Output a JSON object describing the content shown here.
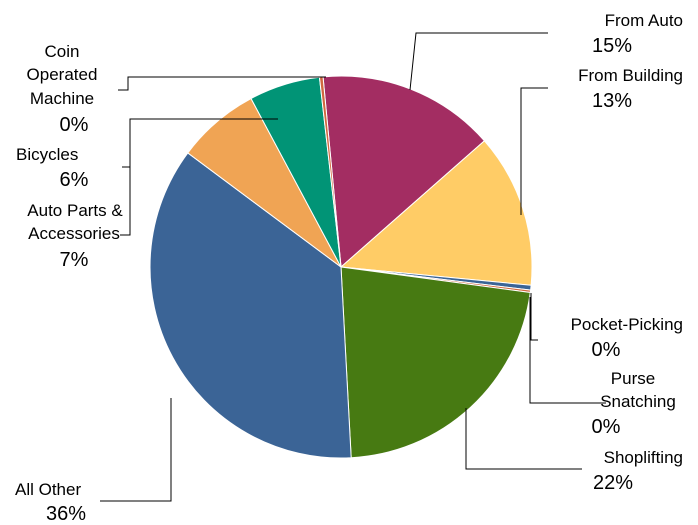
{
  "chart_data": {
    "type": "pie",
    "title": "",
    "slices": [
      {
        "name": "From Auto",
        "value": 15,
        "label": "15%",
        "color": "#A32D62"
      },
      {
        "name": "From Building",
        "value": 13,
        "label": "13%",
        "color": "#FFCC66"
      },
      {
        "name": "Pocket-Picking",
        "value": 0.4,
        "label": "0%",
        "color": "#3B6496"
      },
      {
        "name": "Purse Snatching",
        "value": 0.2,
        "label": "0%",
        "color": "#D0683F"
      },
      {
        "name": "Shoplifting",
        "value": 22,
        "label": "22%",
        "color": "#477A12"
      },
      {
        "name": "All Other",
        "value": 36,
        "label": "36%",
        "color": "#3B6496"
      },
      {
        "name": "Auto Parts & Accessories",
        "value": 7,
        "label": "7%",
        "color": "#F0A454"
      },
      {
        "name": "Bicycles",
        "value": 6,
        "label": "6%",
        "color": "#019476"
      },
      {
        "name": "Coin Operated Machine",
        "value": 0.3,
        "label": "0%",
        "color": "#D0683F"
      }
    ],
    "legend": "none"
  }
}
